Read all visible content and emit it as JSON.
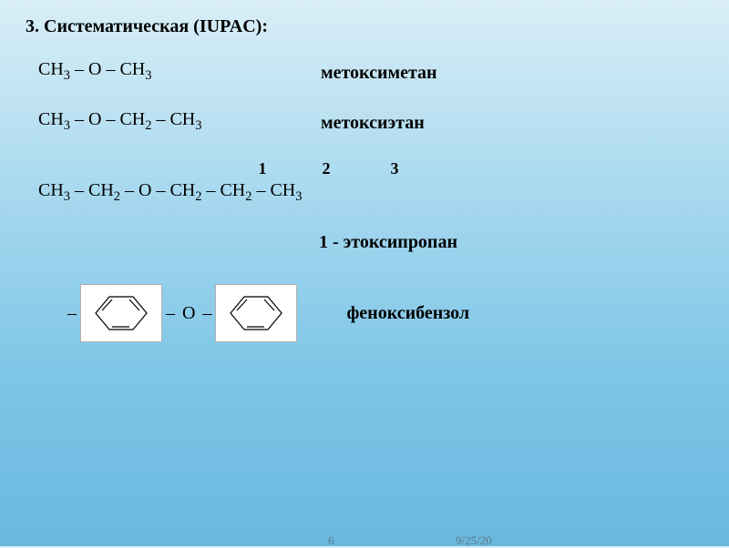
{
  "section": {
    "title": "3. Систематическая (IUPAC):"
  },
  "rows": [
    {
      "formula_html": "CH<sub>3</sub> – O – CH<sub>3</sub>",
      "name": "метоксиметан"
    },
    {
      "formula_html": "CH<sub>3</sub> – O – CH<sub>2</sub> – CH<sub>3</sub>",
      "name": "метоксиэтан"
    }
  ],
  "numbered": {
    "n1": "1",
    "n2": "2",
    "n3": "3",
    "formula_html": "CH<sub>3</sub> – CH<sub>2</sub> – O – CH<sub>2</sub> – CH<sub>2</sub> – CH<sub>3</sub>",
    "result": "1 - этоксипропан"
  },
  "benzene": {
    "connector": "O",
    "dash": "–",
    "name": "феноксибензол",
    "ring_color": "#000000",
    "box_bg": "#ffffff",
    "box_border": "#b0b0b0"
  },
  "footer": {
    "page": "6",
    "date": "9/25/20"
  },
  "style": {
    "text_color": "#000000",
    "title_fontsize": 20,
    "body_fontsize": 20,
    "footer_color": "#5a7a88",
    "bg_gradient": [
      "#d9eef7",
      "#a8d9ef",
      "#7cc5e6",
      "#6bb8df"
    ]
  }
}
